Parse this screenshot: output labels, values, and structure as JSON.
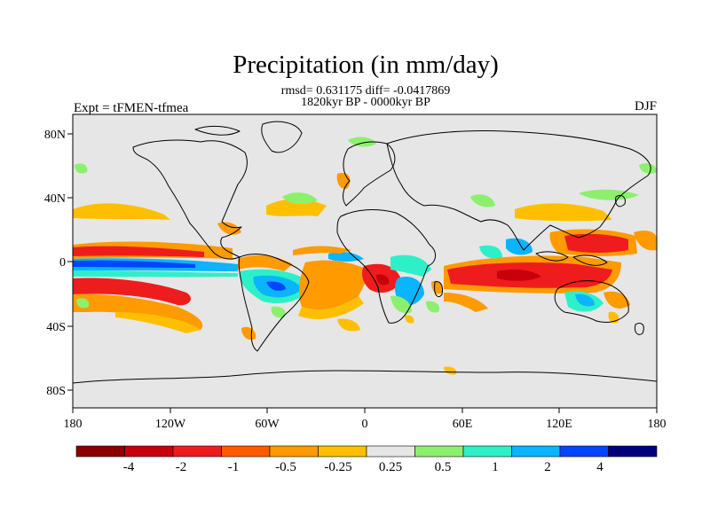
{
  "title": "Precipitation (in mm/day)",
  "stats_line": "rmsd= 0.631175 diff= -0.0417869",
  "period_line": "1820kyr BP - 0000kyr BP",
  "experiment_label": "Expt = tFMEN-tfmea",
  "season_label": "DJF",
  "lat_ticks": [
    "80N",
    "40N",
    "0",
    "40S",
    "80S"
  ],
  "lon_ticks": [
    "180",
    "120W",
    "60W",
    "0",
    "60E",
    "120E",
    "180"
  ],
  "colorbar": {
    "colors": [
      "#8b0000",
      "#c8000a",
      "#ee1c1c",
      "#ff5a00",
      "#ff9a00",
      "#ffbf00",
      "#e6e6e6",
      "#8cf06e",
      "#2ef0c8",
      "#0ab4ff",
      "#0046ff",
      "#00007d"
    ],
    "labels": [
      "-4",
      "-2",
      "-1",
      "-0.5",
      "-0.25",
      "0.25",
      "0.5",
      "1",
      "2",
      "4"
    ]
  },
  "colors": {
    "ocean_background": "#e6e6e6",
    "coastline": "#000000"
  }
}
